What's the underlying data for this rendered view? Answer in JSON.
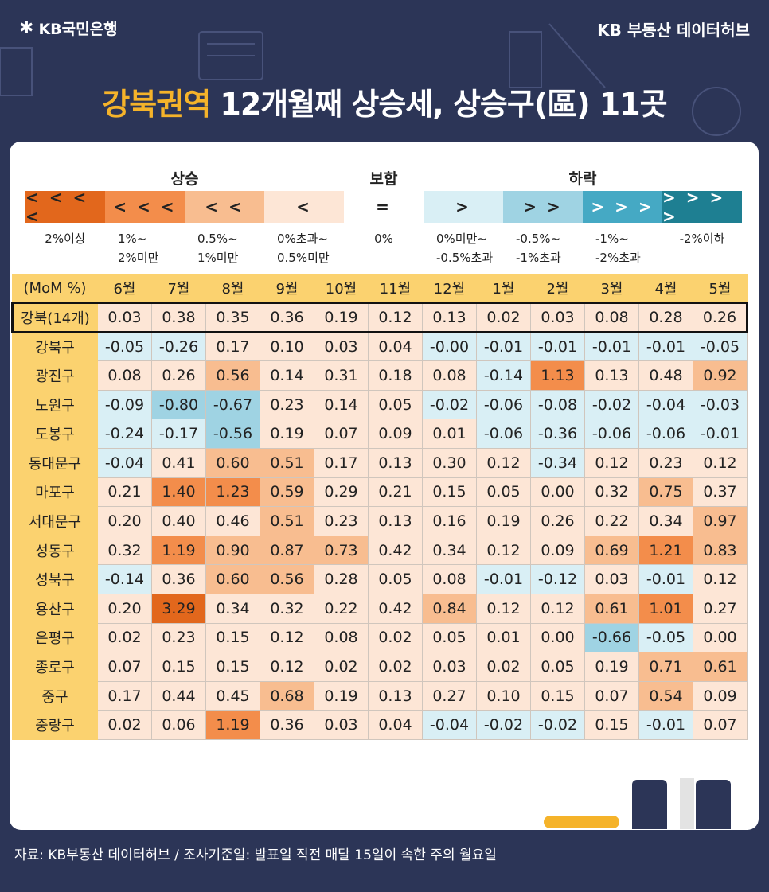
{
  "header": {
    "logo_text": "KB국민은행",
    "hub_text": "KB 부동산  데이터허브",
    "title_highlight": "강북권역",
    "title_rest": " 12개월째 상승세, 상승구(區) 11곳"
  },
  "legend": {
    "groups": [
      "상승",
      "보합",
      "하락"
    ],
    "items": [
      {
        "symbol": "<<<<",
        "label": "2%이상",
        "color": "#e2671c",
        "text_color": "#222222"
      },
      {
        "symbol": "<<<",
        "label": "1%~\n2%미만",
        "color": "#f38d4b",
        "text_color": "#222222"
      },
      {
        "symbol": "<<",
        "label": "0.5%~\n1%미만",
        "color": "#f8bd90",
        "text_color": "#222222"
      },
      {
        "symbol": "<",
        "label": "0%초과~\n0.5%미만",
        "color": "#fde6d6",
        "text_color": "#222222"
      },
      {
        "symbol": "=",
        "label": "0%",
        "color": "#ffffff",
        "text_color": "#222222"
      },
      {
        "symbol": ">",
        "label": "0%미만~\n-0.5%초과",
        "color": "#d9eff5",
        "text_color": "#222222"
      },
      {
        "symbol": ">>",
        "label": "-0.5%~\n-1%초과",
        "color": "#9fd3e3",
        "text_color": "#222222"
      },
      {
        "symbol": ">>>",
        "label": "-1%~\n-2%초과",
        "color": "#45a9c4",
        "text_color": "#ffffff"
      },
      {
        "symbol": ">>>>",
        "label": "-2%이하",
        "color": "#1e7f92",
        "text_color": "#ffffff"
      }
    ]
  },
  "chart_data": {
    "type": "table",
    "corner_label": "(MoM %)",
    "columns": [
      "6월",
      "7월",
      "8월",
      "9월",
      "10월",
      "11월",
      "12월",
      "1월",
      "2월",
      "3월",
      "4월",
      "5월"
    ],
    "rows": [
      {
        "name": "강북(14개)",
        "values": [
          0.03,
          0.38,
          0.35,
          0.36,
          0.19,
          0.12,
          0.13,
          0.02,
          0.03,
          0.08,
          0.28,
          0.26
        ]
      },
      {
        "name": "강북구",
        "values": [
          -0.05,
          -0.26,
          0.17,
          0.1,
          0.03,
          0.04,
          -0.0,
          -0.01,
          -0.01,
          -0.01,
          -0.01,
          -0.05
        ]
      },
      {
        "name": "광진구",
        "values": [
          0.08,
          0.26,
          0.56,
          0.14,
          0.31,
          0.18,
          0.08,
          -0.14,
          1.13,
          0.13,
          0.48,
          0.92
        ]
      },
      {
        "name": "노원구",
        "values": [
          -0.09,
          -0.8,
          -0.67,
          0.23,
          0.14,
          0.05,
          -0.02,
          -0.06,
          -0.08,
          -0.02,
          -0.04,
          -0.03
        ]
      },
      {
        "name": "도봉구",
        "values": [
          -0.24,
          -0.17,
          -0.56,
          0.19,
          0.07,
          0.09,
          0.01,
          -0.06,
          -0.36,
          -0.06,
          -0.06,
          -0.01
        ]
      },
      {
        "name": "동대문구",
        "values": [
          -0.04,
          0.41,
          0.6,
          0.51,
          0.17,
          0.13,
          0.3,
          0.12,
          -0.34,
          0.12,
          0.23,
          0.12
        ]
      },
      {
        "name": "마포구",
        "values": [
          0.21,
          1.4,
          1.23,
          0.59,
          0.29,
          0.21,
          0.15,
          0.05,
          0.0,
          0.32,
          0.75,
          0.37
        ]
      },
      {
        "name": "서대문구",
        "values": [
          0.2,
          0.4,
          0.46,
          0.51,
          0.23,
          0.13,
          0.16,
          0.19,
          0.26,
          0.22,
          0.34,
          0.97
        ]
      },
      {
        "name": "성동구",
        "values": [
          0.32,
          1.19,
          0.9,
          0.87,
          0.73,
          0.42,
          0.34,
          0.12,
          0.09,
          0.69,
          1.21,
          0.83
        ]
      },
      {
        "name": "성북구",
        "values": [
          -0.14,
          0.36,
          0.6,
          0.56,
          0.28,
          0.05,
          0.08,
          -0.01,
          -0.12,
          0.03,
          -0.01,
          0.12
        ]
      },
      {
        "name": "용산구",
        "values": [
          0.2,
          3.29,
          0.34,
          0.32,
          0.22,
          0.42,
          0.84,
          0.12,
          0.12,
          0.61,
          1.01,
          0.27
        ]
      },
      {
        "name": "은평구",
        "values": [
          0.02,
          0.23,
          0.15,
          0.12,
          0.08,
          0.02,
          0.05,
          0.01,
          0.0,
          -0.66,
          -0.05,
          0.0
        ]
      },
      {
        "name": "종로구",
        "values": [
          0.07,
          0.15,
          0.15,
          0.12,
          0.02,
          0.02,
          0.03,
          0.02,
          0.05,
          0.19,
          0.71,
          0.61
        ]
      },
      {
        "name": "중구",
        "values": [
          0.17,
          0.44,
          0.45,
          0.68,
          0.19,
          0.13,
          0.27,
          0.1,
          0.15,
          0.07,
          0.54,
          0.09
        ]
      },
      {
        "name": "중랑구",
        "values": [
          0.02,
          0.06,
          1.19,
          0.36,
          0.03,
          0.04,
          -0.04,
          -0.02,
          -0.02,
          0.15,
          -0.01,
          0.07
        ]
      }
    ]
  },
  "footer": {
    "source_text": "자료: KB부동산 데이터허브 / 조사기준일: 발표일 직전 매달 15일이 속한 주의 월요일"
  }
}
